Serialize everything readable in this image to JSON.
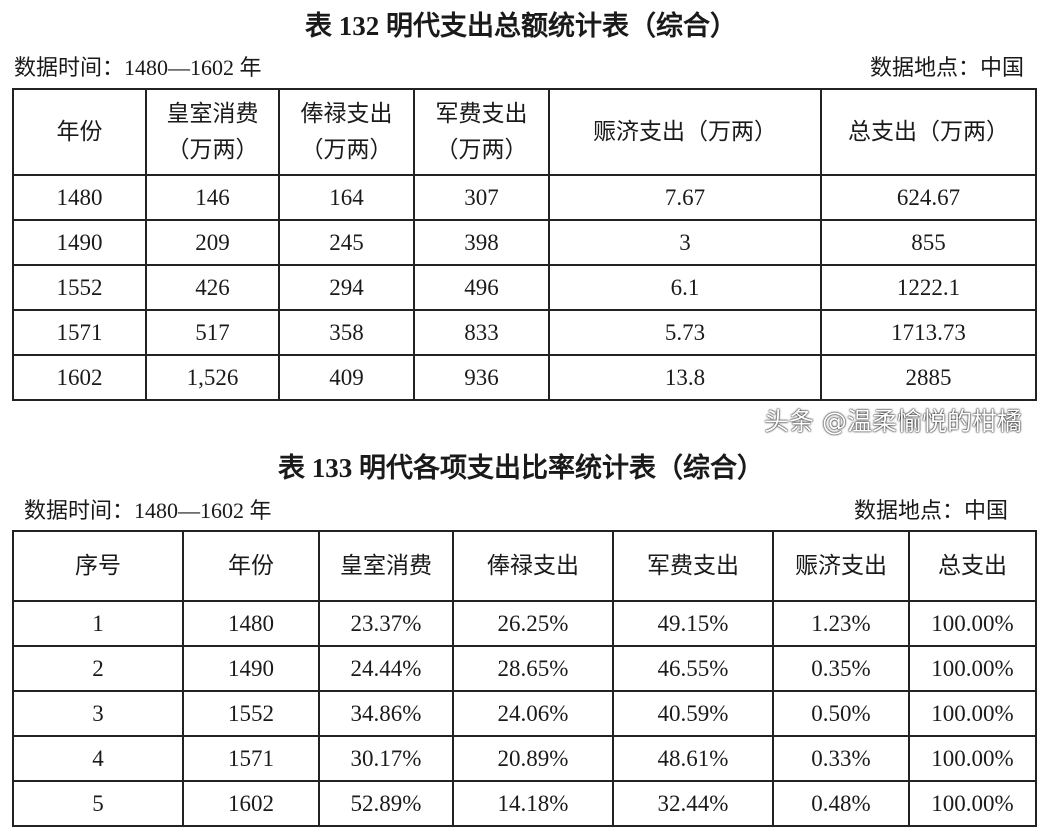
{
  "table1": {
    "title": "表 132 明代支出总额统计表（综合）",
    "time": "数据时间：1480—1602 年",
    "place": "数据地点：中国",
    "headers": [
      "年份",
      "皇室消费（万两）",
      "俸禄支出（万两）",
      "军费支出（万两）",
      "赈济支出（万两）",
      "总支出（万两）"
    ],
    "rows": [
      [
        "1480",
        "146",
        "164",
        "307",
        "7.67",
        "624.67"
      ],
      [
        "1490",
        "209",
        "245",
        "398",
        "3",
        "855"
      ],
      [
        "1552",
        "426",
        "294",
        "496",
        "6.1",
        "1222.1"
      ],
      [
        "1571",
        "517",
        "358",
        "833",
        "5.73",
        "1713.73"
      ],
      [
        "1602",
        "1,526",
        "409",
        "936",
        "13.8",
        "2885"
      ]
    ]
  },
  "table2": {
    "title": "表 133 明代各项支出比率统计表（综合）",
    "time": "数据时间：1480—1602 年",
    "place": "数据地点：中国",
    "headers": [
      "序号",
      "年份",
      "皇室消费",
      "俸禄支出",
      "军费支出",
      "赈济支出",
      "总支出"
    ],
    "rows": [
      [
        "1",
        "1480",
        "23.37%",
        "26.25%",
        "49.15%",
        "1.23%",
        "100.00%"
      ],
      [
        "2",
        "1490",
        "24.44%",
        "28.65%",
        "46.55%",
        "0.35%",
        "100.00%"
      ],
      [
        "3",
        "1552",
        "34.86%",
        "24.06%",
        "40.59%",
        "0.50%",
        "100.00%"
      ],
      [
        "4",
        "1571",
        "30.17%",
        "20.89%",
        "48.61%",
        "0.33%",
        "100.00%"
      ],
      [
        "5",
        "1602",
        "52.89%",
        "14.18%",
        "32.44%",
        "0.48%",
        "100.00%"
      ]
    ]
  },
  "watermark": "头条 @温柔愉悦的柑橘"
}
